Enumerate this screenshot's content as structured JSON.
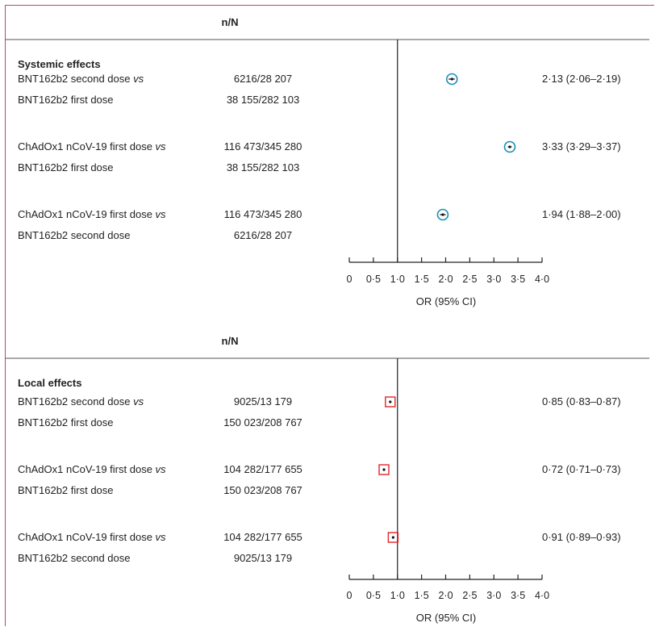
{
  "chart_data": [
    {
      "type": "forest",
      "column_header": "n/N",
      "section_title": "Systemic effects",
      "xlabel": "OR (95% CI)",
      "xlim": [
        0,
        4.0
      ],
      "ref_line": 1.0,
      "tick_labels": [
        "0",
        "0·5",
        "1·0",
        "1·5",
        "2·0",
        "2·5",
        "3·0",
        "3·5",
        "4·0"
      ],
      "tick_values": [
        0,
        0.5,
        1.0,
        1.5,
        2.0,
        2.5,
        3.0,
        3.5,
        4.0
      ],
      "marker": "circle",
      "marker_color": "#1a8fb8",
      "rows": [
        {
          "label_a": "BNT162b2 second dose ",
          "vs": "vs",
          "label_b": "BNT162b2 first dose",
          "n_a": "6216/28 207",
          "n_b": "38 155/282 103",
          "or": 2.13,
          "lo": 2.06,
          "hi": 2.19,
          "or_text": "2·13 (2·06–2·19)"
        },
        {
          "label_a": "ChAdOx1 nCoV-19 first dose ",
          "vs": "vs",
          "label_b": "BNT162b2 first dose",
          "n_a": "116 473/345 280",
          "n_b": "38 155/282 103",
          "or": 3.33,
          "lo": 3.29,
          "hi": 3.37,
          "or_text": "3·33 (3·29–3·37)"
        },
        {
          "label_a": "ChAdOx1 nCoV-19 first dose ",
          "vs": "vs",
          "label_b": "BNT162b2 second  dose",
          "n_a": "116 473/345 280",
          "n_b": "6216/28 207",
          "or": 1.94,
          "lo": 1.88,
          "hi": 2.0,
          "or_text": "1·94 (1·88–2·00)"
        }
      ]
    },
    {
      "type": "forest",
      "column_header": "n/N",
      "section_title": "Local effects",
      "xlabel": "OR (95% CI)",
      "xlim": [
        0,
        4.0
      ],
      "ref_line": 1.0,
      "tick_labels": [
        "0",
        "0·5",
        "1·0",
        "1·5",
        "2·0",
        "2·5",
        "3·0",
        "3·5",
        "4·0"
      ],
      "tick_values": [
        0,
        0.5,
        1.0,
        1.5,
        2.0,
        2.5,
        3.0,
        3.5,
        4.0
      ],
      "marker": "square",
      "marker_color": "#e0262b",
      "rows": [
        {
          "label_a": "BNT162b2 second  dose ",
          "vs": "vs",
          "label_b": "BNT162b2 first dose",
          "n_a": "9025/13 179",
          "n_b": "150 023/208 767",
          "or": 0.85,
          "lo": 0.83,
          "hi": 0.87,
          "or_text": "0·85 (0·83–0·87)"
        },
        {
          "label_a": "ChAdOx1 nCoV-19 first dose ",
          "vs": "vs",
          "label_b": "BNT162b2 first dose",
          "n_a": "104 282/177 655",
          "n_b": "150 023/208 767",
          "or": 0.72,
          "lo": 0.71,
          "hi": 0.73,
          "or_text": "0·72 (0·71–0·73)"
        },
        {
          "label_a": "ChAdOx1 nCoV-19 first dose ",
          "vs": "vs",
          "label_b": "BNT162b2 second dose",
          "n_a": "104 282/177 655",
          "n_b": "9025/13 179",
          "or": 0.91,
          "lo": 0.89,
          "hi": 0.93,
          "or_text": "0·91 (0·89–0·93)"
        }
      ]
    }
  ]
}
